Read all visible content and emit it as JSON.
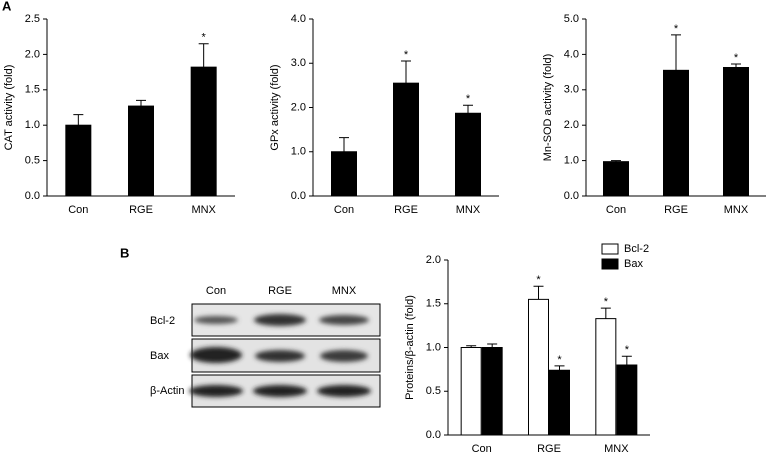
{
  "panels": {
    "a": "A",
    "b": "B"
  },
  "blot": {
    "lanes": [
      "Con",
      "RGE",
      "MNX"
    ],
    "proteins": [
      "Bcl-2",
      "Bax",
      "β-Actin"
    ]
  },
  "chart_data": [
    {
      "type": "bar",
      "y_label": "CAT activity (fold)",
      "categories": [
        "Con",
        "RGE",
        "MNX"
      ],
      "values": [
        1.0,
        1.27,
        1.82
      ],
      "errors": [
        0.15,
        0.08,
        0.33
      ],
      "significance": [
        null,
        null,
        "*"
      ],
      "color": "#000000",
      "ylim": [
        0,
        2.5
      ],
      "yticks": [
        {
          "value": 0,
          "label": "0.0"
        },
        0.5,
        {
          "value": 1,
          "label": "1.0"
        },
        1.5,
        {
          "value": 2,
          "label": "2.0"
        },
        2.5
      ]
    },
    {
      "type": "bar",
      "y_label": "GPx activity (fold)",
      "categories": [
        "Con",
        "RGE",
        "MNX"
      ],
      "values": [
        1.0,
        2.55,
        1.87
      ],
      "errors": [
        0.32,
        0.5,
        0.18
      ],
      "significance": [
        null,
        "*",
        "*"
      ],
      "color": "#000000",
      "ylim": [
        0,
        4
      ],
      "yticks": [
        {
          "value": 0,
          "label": "0.0"
        },
        {
          "value": 1,
          "label": "1.0"
        },
        {
          "value": 2,
          "label": "2.0"
        },
        {
          "value": 3,
          "label": "3.0"
        },
        {
          "value": 4,
          "label": "4.0"
        }
      ]
    },
    {
      "type": "bar",
      "y_label": "Mn-SOD activity (fold)",
      "categories": [
        "Con",
        "RGE",
        "MNX"
      ],
      "values": [
        0.97,
        3.55,
        3.63
      ],
      "errors": [
        0.03,
        1.0,
        0.1
      ],
      "significance": [
        null,
        "*",
        "*"
      ],
      "color": "#000000",
      "ylim": [
        0,
        5
      ],
      "yticks": [
        {
          "value": 0,
          "label": "0.0"
        },
        {
          "value": 1,
          "label": "1.0"
        },
        {
          "value": 2,
          "label": "2.0"
        },
        {
          "value": 3,
          "label": "3.0"
        },
        {
          "value": 4,
          "label": "4.0"
        },
        {
          "value": 5,
          "label": "5.0"
        }
      ]
    },
    {
      "type": "bar",
      "y_label": "Proteins/β-actin (fold)",
      "categories": [
        "Con",
        "RGE",
        "MNX"
      ],
      "legend": "upper right",
      "series": [
        {
          "name": "Bcl-2",
          "color": "#ffffff",
          "values": [
            1.0,
            1.55,
            1.33
          ],
          "errors": [
            0.02,
            0.15,
            0.12
          ],
          "significance": [
            null,
            "*",
            "*"
          ]
        },
        {
          "name": "Bax",
          "color": "#000000",
          "values": [
            1.0,
            0.74,
            0.8
          ],
          "errors": [
            0.04,
            0.05,
            0.1
          ],
          "significance": [
            null,
            "*",
            "*"
          ]
        }
      ],
      "ylim": [
        0,
        2
      ],
      "yticks": [
        {
          "value": 0,
          "label": "0.0"
        },
        0.5,
        {
          "value": 1,
          "label": "1.0"
        },
        1.5,
        {
          "value": 2,
          "label": "2.0"
        }
      ]
    }
  ]
}
